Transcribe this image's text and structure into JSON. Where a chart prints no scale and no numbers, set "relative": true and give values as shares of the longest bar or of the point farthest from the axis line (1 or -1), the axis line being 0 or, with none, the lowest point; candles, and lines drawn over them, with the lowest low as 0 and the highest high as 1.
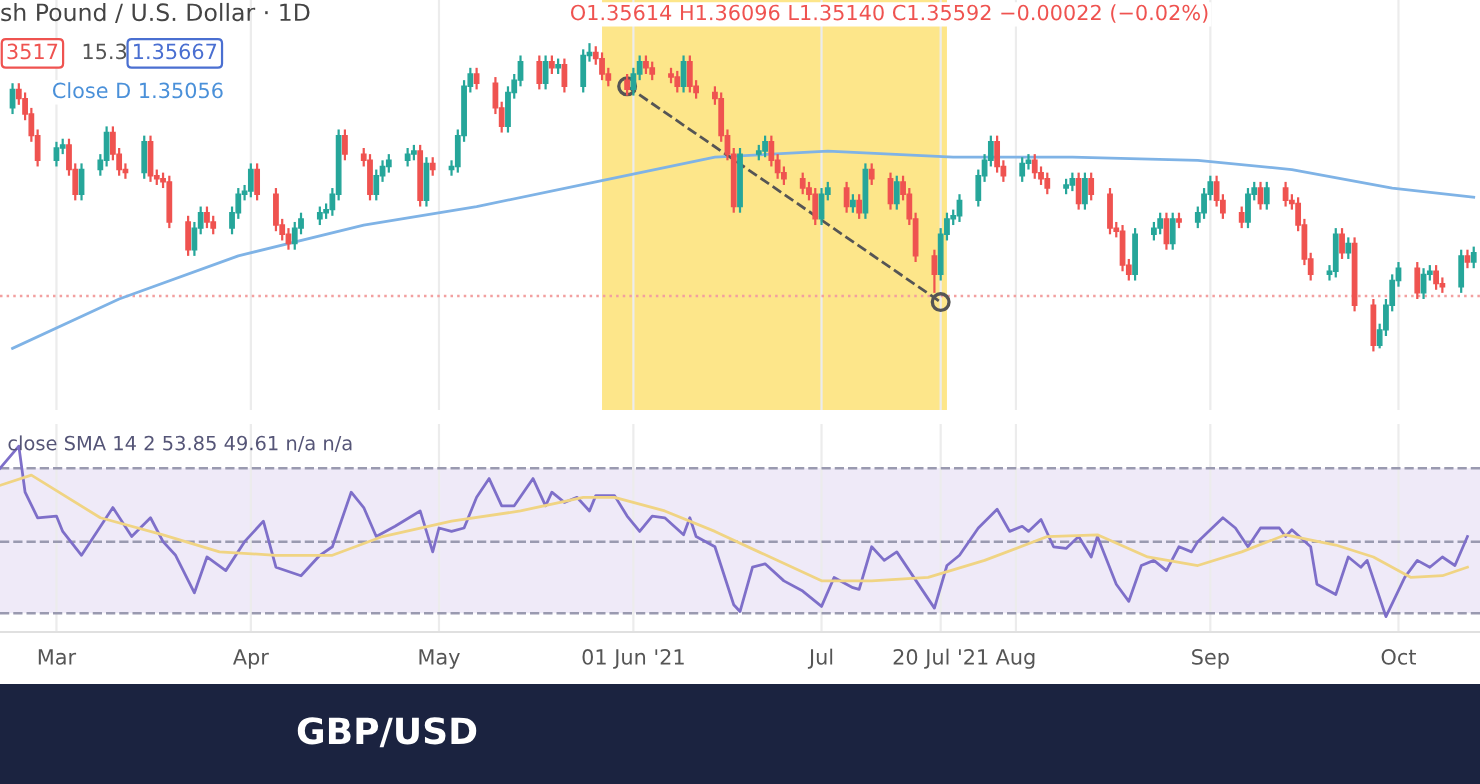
{
  "chart_data": [
    {
      "type": "candlestick",
      "title": "sh Pound / U.S. Dollar · 1D",
      "relative": true,
      "tick_labels": false,
      "grid": "x",
      "annotations": [
        "O1.35614 H1.36096 L1.35140 C1.35592 −0.00022 (−0.02%)",
        "3517",
        "15.3",
        "1.35667",
        "Close D 1.35056"
      ],
      "colors": [
        "#26a69a",
        "#ef5350",
        "#ef5350",
        "#ef5350",
        "#ef5350",
        "#26a69a",
        "#26a69a",
        "#ef5350",
        "#ef5350",
        "#26a69a",
        "#26a69a",
        "#26a69a",
        "#ef5350",
        "#ef5350",
        "#ef5350",
        "#26a69a",
        "#ef5350",
        "#ef5350",
        "#ef5350",
        "#ef5350",
        "#ef5350",
        "#26a69a",
        "#26a69a",
        "#ef5350",
        "#ef5350",
        "#26a69a",
        "#26a69a",
        "#26a69a",
        "#26a69a",
        "#ef5350",
        "#ef5350",
        "#ef5350",
        "#ef5350",
        "#26a69a",
        "#26a69a",
        "#26a69a",
        "#26a69a",
        "#26a69a",
        "#26a69a",
        "#ef5350",
        "#ef5350",
        "#ef5350",
        "#26a69a",
        "#26a69a",
        "#26a69a",
        "#26a69a",
        "#26a69a",
        "#ef5350",
        "#26a69a",
        "#ef5350",
        "#26a69a",
        "#26a69a",
        "#26a69a",
        "#26a69a",
        "#ef5350",
        "#ef5350",
        "#ef5350",
        "#26a69a",
        "#26a69a",
        "#26a69a",
        "#ef5350",
        "#26a69a",
        "#ef5350",
        "#26a69a",
        "#ef5350",
        "#26a69a",
        "#26a69a",
        "#ef5350",
        "#ef5350",
        "#ef5350",
        "#ef5350",
        "#26a69a",
        "#26a69a",
        "#ef5350",
        "#ef5350",
        "#ef5350",
        "#ef5350",
        "#26a69a",
        "#ef5350",
        "#ef5350",
        "#ef5350",
        "#ef5350",
        "#ef5350",
        "#ef5350",
        "#26a69a",
        "#26a69a",
        "#26a69a",
        "#ef5350",
        "#ef5350",
        "#ef5350",
        "#ef5350",
        "#ef5350",
        "#ef5350",
        "#26a69a",
        "#26a69a",
        "#ef5350",
        "#26a69a",
        "#ef5350",
        "#26a69a",
        "#ef5350",
        "#ef5350",
        "#26a69a",
        "#ef5350",
        "#ef5350",
        "#ef5350",
        "#ef5350",
        "#26a69a",
        "#26a69a",
        "#26a69a",
        "#26a69a",
        "#26a69a",
        "#26a69a",
        "#26a69a",
        "#ef5350",
        "#ef5350",
        "#26a69a",
        "#26a69a",
        "#ef5350",
        "#ef5350",
        "#ef5350",
        "#26a69a",
        "#26a69a",
        "#ef5350",
        "#26a69a",
        "#ef5350",
        "#ef5350",
        "#ef5350",
        "#ef5350",
        "#ef5350",
        "#26a69a",
        "#26a69a",
        "#26a69a",
        "#ef5350",
        "#26a69a",
        "#ef5350",
        "#26a69a",
        "#26a69a",
        "#26a69a",
        "#ef5350",
        "#ef5350",
        "#ef5350",
        "#26a69a",
        "#26a69a",
        "#ef5350",
        "#26a69a",
        "#ef5350",
        "#ef5350",
        "#ef5350",
        "#ef5350",
        "#ef5350",
        "#26a69a",
        "#26a69a",
        "#ef5350",
        "#26a69a",
        "#ef5350",
        "#ef5350",
        "#26a69a",
        "#26a69a",
        "#26a69a",
        "#26a69a",
        "#ef5350",
        "#26a69a",
        "#26a69a",
        "#ef5350",
        "#ef5350",
        "#26a69a",
        "#ef5350",
        "#26a69a"
      ],
      "xlim": [
        "2021-02-20",
        "2021-10-14"
      ],
      "x": [
        "2021-02-22",
        "2021-02-23",
        "2021-02-24",
        "2021-02-25",
        "2021-02-26",
        "2021-03-01",
        "2021-03-02",
        "2021-03-03",
        "2021-03-04",
        "2021-03-05",
        "2021-03-08",
        "2021-03-09",
        "2021-03-10",
        "2021-03-11",
        "2021-03-12",
        "2021-03-15",
        "2021-03-16",
        "2021-03-17",
        "2021-03-18",
        "2021-03-19",
        "2021-03-22",
        "2021-03-23",
        "2021-03-24",
        "2021-03-25",
        "2021-03-26",
        "2021-03-29",
        "2021-03-30",
        "2021-03-31",
        "2021-04-01",
        "2021-04-02",
        "2021-04-05",
        "2021-04-06",
        "2021-04-07",
        "2021-04-08",
        "2021-04-09",
        "2021-04-12",
        "2021-04-13",
        "2021-04-14",
        "2021-04-15",
        "2021-04-16",
        "2021-04-19",
        "2021-04-20",
        "2021-04-21",
        "2021-04-22",
        "2021-04-23",
        "2021-04-26",
        "2021-04-27",
        "2021-04-28",
        "2021-04-29",
        "2021-04-30",
        "2021-05-03",
        "2021-05-04",
        "2021-05-05",
        "2021-05-06",
        "2021-05-07",
        "2021-05-10",
        "2021-05-11",
        "2021-05-12",
        "2021-05-13",
        "2021-05-14",
        "2021-05-17",
        "2021-05-18",
        "2021-05-19",
        "2021-05-20",
        "2021-05-21",
        "2021-05-24",
        "2021-05-25",
        "2021-05-26",
        "2021-05-27",
        "2021-05-28",
        "2021-05-31",
        "2021-06-01",
        "2021-06-02",
        "2021-06-03",
        "2021-06-04",
        "2021-06-07",
        "2021-06-08",
        "2021-06-09",
        "2021-06-10",
        "2021-06-11",
        "2021-06-14",
        "2021-06-15",
        "2021-06-16",
        "2021-06-17",
        "2021-06-18",
        "2021-06-21",
        "2021-06-22",
        "2021-06-23",
        "2021-06-24",
        "2021-06-25",
        "2021-06-28",
        "2021-06-29",
        "2021-06-30",
        "2021-07-01",
        "2021-07-02",
        "2021-07-05",
        "2021-07-06",
        "2021-07-07",
        "2021-07-08",
        "2021-07-09",
        "2021-07-12",
        "2021-07-13",
        "2021-07-14",
        "2021-07-15",
        "2021-07-16",
        "2021-07-19",
        "2021-07-20",
        "2021-07-21",
        "2021-07-22",
        "2021-07-23",
        "2021-07-26",
        "2021-07-27",
        "2021-07-28",
        "2021-07-29",
        "2021-07-30",
        "2021-08-02",
        "2021-08-03",
        "2021-08-04",
        "2021-08-05",
        "2021-08-06",
        "2021-08-09",
        "2021-08-10",
        "2021-08-11",
        "2021-08-12",
        "2021-08-13",
        "2021-08-16",
        "2021-08-17",
        "2021-08-18",
        "2021-08-19",
        "2021-08-20",
        "2021-08-23",
        "2021-08-24",
        "2021-08-25",
        "2021-08-26",
        "2021-08-27",
        "2021-08-30",
        "2021-08-31",
        "2021-09-01",
        "2021-09-02",
        "2021-09-03",
        "2021-09-06",
        "2021-09-07",
        "2021-09-08",
        "2021-09-09",
        "2021-09-10",
        "2021-09-13",
        "2021-09-14",
        "2021-09-15",
        "2021-09-16",
        "2021-09-17",
        "2021-09-20",
        "2021-09-21",
        "2021-09-22",
        "2021-09-23",
        "2021-09-24",
        "2021-09-27",
        "2021-09-28",
        "2021-09-29",
        "2021-09-30",
        "2021-10-01",
        "2021-10-04",
        "2021-10-05",
        "2021-10-06",
        "2021-10-07",
        "2021-10-08",
        "2021-10-11",
        "2021-10-12",
        "2021-10-13"
      ],
      "ohlc": [
        [
          0.79,
          0.87,
          0.77,
          0.85
        ],
        [
          0.85,
          0.87,
          0.8,
          0.82
        ],
        [
          0.82,
          0.84,
          0.75,
          0.77
        ],
        [
          0.77,
          0.79,
          0.68,
          0.7
        ],
        [
          0.7,
          0.72,
          0.6,
          0.62
        ],
        [
          0.62,
          0.68,
          0.6,
          0.66
        ],
        [
          0.66,
          0.69,
          0.64,
          0.67
        ],
        [
          0.67,
          0.69,
          0.57,
          0.59
        ],
        [
          0.59,
          0.61,
          0.49,
          0.51
        ],
        [
          0.51,
          0.61,
          0.49,
          0.59
        ],
        [
          0.59,
          0.64,
          0.57,
          0.62
        ],
        [
          0.62,
          0.73,
          0.6,
          0.71
        ],
        [
          0.71,
          0.73,
          0.62,
          0.64
        ],
        [
          0.64,
          0.66,
          0.57,
          0.59
        ],
        [
          0.59,
          0.61,
          0.56,
          0.58
        ],
        [
          0.58,
          0.7,
          0.56,
          0.68
        ],
        [
          0.68,
          0.7,
          0.55,
          0.57
        ],
        [
          0.57,
          0.59,
          0.54,
          0.56
        ],
        [
          0.56,
          0.58,
          0.53,
          0.55
        ],
        [
          0.55,
          0.57,
          0.4,
          0.42
        ],
        [
          0.42,
          0.44,
          0.31,
          0.33
        ],
        [
          0.33,
          0.42,
          0.31,
          0.4
        ],
        [
          0.4,
          0.47,
          0.38,
          0.45
        ],
        [
          0.45,
          0.47,
          0.4,
          0.42
        ],
        [
          0.42,
          0.44,
          0.38,
          0.4
        ],
        [
          0.4,
          0.47,
          0.38,
          0.45
        ],
        [
          0.45,
          0.53,
          0.43,
          0.51
        ],
        [
          0.51,
          0.54,
          0.49,
          0.52
        ],
        [
          0.52,
          0.61,
          0.5,
          0.59
        ],
        [
          0.59,
          0.61,
          0.49,
          0.51
        ],
        [
          0.51,
          0.53,
          0.39,
          0.41
        ],
        [
          0.41,
          0.43,
          0.36,
          0.38
        ],
        [
          0.38,
          0.4,
          0.33,
          0.35
        ],
        [
          0.35,
          0.42,
          0.33,
          0.4
        ],
        [
          0.4,
          0.45,
          0.38,
          0.43
        ],
        [
          0.43,
          0.47,
          0.41,
          0.45
        ],
        [
          0.45,
          0.48,
          0.43,
          0.46
        ],
        [
          0.46,
          0.53,
          0.44,
          0.51
        ],
        [
          0.51,
          0.72,
          0.49,
          0.7
        ],
        [
          0.7,
          0.72,
          0.62,
          0.64
        ],
        [
          0.64,
          0.66,
          0.6,
          0.62
        ],
        [
          0.62,
          0.64,
          0.49,
          0.51
        ],
        [
          0.51,
          0.59,
          0.49,
          0.57
        ],
        [
          0.57,
          0.62,
          0.55,
          0.6
        ],
        [
          0.6,
          0.64,
          0.58,
          0.62
        ],
        [
          0.62,
          0.66,
          0.6,
          0.64
        ],
        [
          0.64,
          0.67,
          0.62,
          0.65
        ],
        [
          0.65,
          0.67,
          0.47,
          0.49
        ],
        [
          0.49,
          0.63,
          0.47,
          0.61
        ],
        [
          0.61,
          0.63,
          0.57,
          0.59
        ],
        [
          0.59,
          0.62,
          0.57,
          0.6
        ],
        [
          0.6,
          0.72,
          0.58,
          0.7
        ],
        [
          0.7,
          0.88,
          0.68,
          0.86
        ],
        [
          0.86,
          0.92,
          0.84,
          0.9
        ],
        [
          0.9,
          0.92,
          0.85,
          0.87
        ],
        [
          0.87,
          0.89,
          0.77,
          0.79
        ],
        [
          0.79,
          0.81,
          0.71,
          0.73
        ],
        [
          0.73,
          0.86,
          0.71,
          0.84
        ],
        [
          0.84,
          0.9,
          0.82,
          0.88
        ],
        [
          0.88,
          0.96,
          0.86,
          0.94
        ],
        [
          0.94,
          0.96,
          0.85,
          0.87
        ],
        [
          0.87,
          0.96,
          0.85,
          0.94
        ],
        [
          0.94,
          0.96,
          0.9,
          0.92
        ],
        [
          0.92,
          0.95,
          0.9,
          0.93
        ],
        [
          0.93,
          0.95,
          0.84,
          0.86
        ],
        [
          0.86,
          0.98,
          0.84,
          0.96
        ],
        [
          0.96,
          1.0,
          0.94,
          0.97
        ],
        [
          0.97,
          0.99,
          0.93,
          0.95
        ],
        [
          0.95,
          0.97,
          0.88,
          0.9
        ],
        [
          0.9,
          0.92,
          0.86,
          0.88
        ],
        [
          0.88,
          0.9,
          0.83,
          0.85
        ],
        [
          0.85,
          0.92,
          0.83,
          0.9
        ],
        [
          0.9,
          0.96,
          0.88,
          0.94
        ],
        [
          0.94,
          0.96,
          0.9,
          0.92
        ],
        [
          0.92,
          0.94,
          0.88,
          0.9
        ],
        [
          0.9,
          0.92,
          0.87,
          0.89
        ],
        [
          0.89,
          0.91,
          0.84,
          0.86
        ],
        [
          0.86,
          0.96,
          0.84,
          0.94
        ],
        [
          0.94,
          0.96,
          0.84,
          0.86
        ],
        [
          0.86,
          0.88,
          0.82,
          0.84
        ],
        [
          0.84,
          0.86,
          0.8,
          0.82
        ],
        [
          0.82,
          0.84,
          0.68,
          0.7
        ],
        [
          0.7,
          0.72,
          0.62,
          0.64
        ],
        [
          0.64,
          0.66,
          0.45,
          0.47
        ],
        [
          0.47,
          0.66,
          0.45,
          0.64
        ],
        [
          0.64,
          0.67,
          0.62,
          0.65
        ],
        [
          0.65,
          0.7,
          0.63,
          0.68
        ],
        [
          0.68,
          0.7,
          0.6,
          0.62
        ],
        [
          0.62,
          0.64,
          0.56,
          0.58
        ],
        [
          0.58,
          0.6,
          0.54,
          0.56
        ],
        [
          0.56,
          0.58,
          0.51,
          0.53
        ],
        [
          0.53,
          0.55,
          0.49,
          0.51
        ],
        [
          0.51,
          0.53,
          0.41,
          0.43
        ],
        [
          0.43,
          0.53,
          0.41,
          0.51
        ],
        [
          0.51,
          0.55,
          0.49,
          0.53
        ],
        [
          0.53,
          0.55,
          0.45,
          0.47
        ],
        [
          0.47,
          0.51,
          0.45,
          0.49
        ],
        [
          0.49,
          0.51,
          0.43,
          0.45
        ],
        [
          0.45,
          0.61,
          0.43,
          0.59
        ],
        [
          0.59,
          0.61,
          0.54,
          0.56
        ],
        [
          0.56,
          0.58,
          0.46,
          0.48
        ],
        [
          0.48,
          0.57,
          0.46,
          0.55
        ],
        [
          0.55,
          0.57,
          0.49,
          0.51
        ],
        [
          0.51,
          0.53,
          0.41,
          0.43
        ],
        [
          0.43,
          0.45,
          0.29,
          0.31
        ],
        [
          0.31,
          0.33,
          0.19,
          0.25
        ],
        [
          0.25,
          0.4,
          0.23,
          0.38
        ],
        [
          0.38,
          0.45,
          0.36,
          0.43
        ],
        [
          0.43,
          0.46,
          0.41,
          0.44
        ],
        [
          0.44,
          0.51,
          0.42,
          0.49
        ],
        [
          0.49,
          0.59,
          0.47,
          0.57
        ],
        [
          0.57,
          0.64,
          0.55,
          0.62
        ],
        [
          0.62,
          0.7,
          0.6,
          0.68
        ],
        [
          0.68,
          0.7,
          0.58,
          0.6
        ],
        [
          0.6,
          0.62,
          0.55,
          0.57
        ],
        [
          0.57,
          0.63,
          0.55,
          0.61
        ],
        [
          0.61,
          0.64,
          0.59,
          0.62
        ],
        [
          0.62,
          0.64,
          0.56,
          0.58
        ],
        [
          0.58,
          0.6,
          0.54,
          0.56
        ],
        [
          0.56,
          0.58,
          0.51,
          0.53
        ],
        [
          0.53,
          0.56,
          0.51,
          0.54
        ],
        [
          0.54,
          0.58,
          0.52,
          0.56
        ],
        [
          0.56,
          0.58,
          0.46,
          0.48
        ],
        [
          0.48,
          0.58,
          0.46,
          0.56
        ],
        [
          0.56,
          0.58,
          0.49,
          0.51
        ],
        [
          0.51,
          0.53,
          0.38,
          0.4
        ],
        [
          0.4,
          0.42,
          0.37,
          0.39
        ],
        [
          0.39,
          0.41,
          0.26,
          0.28
        ],
        [
          0.28,
          0.3,
          0.23,
          0.25
        ],
        [
          0.25,
          0.4,
          0.23,
          0.38
        ],
        [
          0.38,
          0.42,
          0.36,
          0.4
        ],
        [
          0.4,
          0.45,
          0.38,
          0.43
        ],
        [
          0.43,
          0.45,
          0.33,
          0.35
        ],
        [
          0.35,
          0.45,
          0.33,
          0.43
        ],
        [
          0.43,
          0.45,
          0.4,
          0.42
        ],
        [
          0.42,
          0.47,
          0.4,
          0.45
        ],
        [
          0.45,
          0.53,
          0.43,
          0.51
        ],
        [
          0.51,
          0.57,
          0.49,
          0.55
        ],
        [
          0.55,
          0.57,
          0.47,
          0.49
        ],
        [
          0.49,
          0.51,
          0.43,
          0.45
        ],
        [
          0.45,
          0.47,
          0.4,
          0.42
        ],
        [
          0.42,
          0.53,
          0.4,
          0.51
        ],
        [
          0.51,
          0.55,
          0.49,
          0.53
        ],
        [
          0.53,
          0.55,
          0.46,
          0.48
        ],
        [
          0.48,
          0.55,
          0.46,
          0.53
        ],
        [
          0.53,
          0.55,
          0.47,
          0.49
        ],
        [
          0.49,
          0.51,
          0.46,
          0.48
        ],
        [
          0.48,
          0.5,
          0.39,
          0.41
        ],
        [
          0.41,
          0.43,
          0.28,
          0.3
        ],
        [
          0.3,
          0.32,
          0.23,
          0.25
        ],
        [
          0.25,
          0.28,
          0.23,
          0.26
        ],
        [
          0.26,
          0.4,
          0.24,
          0.38
        ],
        [
          0.38,
          0.4,
          0.3,
          0.32
        ],
        [
          0.32,
          0.37,
          0.3,
          0.35
        ],
        [
          0.35,
          0.37,
          0.13,
          0.15
        ],
        [
          0.15,
          0.17,
          0.0,
          0.02
        ],
        [
          0.02,
          0.09,
          0.01,
          0.07
        ],
        [
          0.07,
          0.17,
          0.05,
          0.15
        ],
        [
          0.15,
          0.25,
          0.13,
          0.23
        ],
        [
          0.23,
          0.29,
          0.21,
          0.27
        ],
        [
          0.27,
          0.29,
          0.17,
          0.19
        ],
        [
          0.19,
          0.27,
          0.17,
          0.25
        ],
        [
          0.25,
          0.28,
          0.23,
          0.26
        ],
        [
          0.26,
          0.28,
          0.2,
          0.22
        ],
        [
          0.22,
          0.24,
          0.19,
          0.21
        ],
        [
          0.21,
          0.33,
          0.19,
          0.31
        ],
        [
          0.31,
          0.33,
          0.27,
          0.29
        ],
        [
          0.29,
          0.34,
          0.27,
          0.32
        ]
      ],
      "series": [
        {
          "type": "line",
          "color": "#7fb3e6",
          "line_style": "solid",
          "marker": "none",
          "x": [
            "2021-02-22",
            "2021-03-11",
            "2021-03-30",
            "2021-04-19",
            "2021-05-07",
            "2021-05-26",
            "2021-06-14",
            "2021-07-02",
            "2021-07-22",
            "2021-08-10",
            "2021-08-30",
            "2021-09-14",
            "2021-09-30",
            "2021-10-13"
          ],
          "values": [
            0.01,
            0.17,
            0.31,
            0.41,
            0.47,
            0.55,
            0.63,
            0.65,
            0.63,
            0.63,
            0.62,
            0.59,
            0.53,
            0.5
          ]
        },
        {
          "type": "line",
          "color": "#555555",
          "line_style": "dashed",
          "marker": "circle",
          "x": [
            "2021-05-31",
            "2021-07-20"
          ],
          "values": [
            0.86,
            0.16
          ]
        }
      ],
      "bands": [
        {
          "axis": "x",
          "from": "2021-05-27",
          "to": "2021-07-21",
          "color": "#fde68a"
        }
      ],
      "ref_lines": [
        {
          "axis": "y",
          "value": 0.18,
          "color": "#f2a0a0",
          "line_style": "dotted"
        }
      ]
    },
    {
      "type": "line",
      "title": "close SMA 14 2 53.85 49.61 n/a n/a",
      "relative": true,
      "tick_labels": "x",
      "grid": "x",
      "annotations": [
        "GBP/USD"
      ],
      "xlim": [
        "2021-02-20",
        "2021-10-14"
      ],
      "xticks": [
        {
          "value": "2021-03-01",
          "label": "Mar"
        },
        {
          "value": "2021-04-01",
          "label": "Apr"
        },
        {
          "value": "2021-05-01",
          "label": "May"
        },
        {
          "value": "2021-06-01",
          "label": "01 Jun '21"
        },
        {
          "value": "2021-07-01",
          "label": "Jul"
        },
        {
          "value": "2021-07-20",
          "label": "20 Jul '21"
        },
        {
          "value": "2021-08-01",
          "label": "Aug"
        },
        {
          "value": "2021-09-01",
          "label": "Sep"
        },
        {
          "value": "2021-10-01",
          "label": "Oct"
        }
      ],
      "series": [
        {
          "type": "line",
          "color": "#7e6fc9",
          "x": [
            "2021-02-20",
            "2021-02-23",
            "2021-02-24",
            "2021-02-26",
            "2021-03-01",
            "2021-03-02",
            "2021-03-05",
            "2021-03-10",
            "2021-03-13",
            "2021-03-16",
            "2021-03-18",
            "2021-03-20",
            "2021-03-23",
            "2021-03-25",
            "2021-03-28",
            "2021-03-31",
            "2021-04-03",
            "2021-04-05",
            "2021-04-09",
            "2021-04-12",
            "2021-04-14",
            "2021-04-17",
            "2021-04-19",
            "2021-04-21",
            "2021-04-24",
            "2021-04-28",
            "2021-04-30",
            "2021-05-01",
            "2021-05-03",
            "2021-05-05",
            "2021-05-07",
            "2021-05-09",
            "2021-05-11",
            "2021-05-13",
            "2021-05-16",
            "2021-05-18",
            "2021-05-19",
            "2021-05-21",
            "2021-05-23",
            "2021-05-25",
            "2021-05-26",
            "2021-05-29",
            "2021-05-31",
            "2021-06-02",
            "2021-06-04",
            "2021-06-06",
            "2021-06-09",
            "2021-06-10",
            "2021-06-11",
            "2021-06-14",
            "2021-06-17",
            "2021-06-18",
            "2021-06-20",
            "2021-06-22",
            "2021-06-25",
            "2021-06-28",
            "2021-07-01",
            "2021-07-03",
            "2021-07-06",
            "2021-07-07",
            "2021-07-09",
            "2021-07-11",
            "2021-07-13",
            "2021-07-15",
            "2021-07-19",
            "2021-07-21",
            "2021-07-23",
            "2021-07-26",
            "2021-07-29",
            "2021-07-31",
            "2021-08-02",
            "2021-08-03",
            "2021-08-05",
            "2021-08-07",
            "2021-08-09",
            "2021-08-11",
            "2021-08-13",
            "2021-08-14",
            "2021-08-17",
            "2021-08-19",
            "2021-08-21",
            "2021-08-23",
            "2021-08-25",
            "2021-08-27",
            "2021-08-29",
            "2021-08-30",
            "2021-09-03",
            "2021-09-05",
            "2021-09-07",
            "2021-09-09",
            "2021-09-12",
            "2021-09-13",
            "2021-09-14",
            "2021-09-17",
            "2021-09-18",
            "2021-09-21",
            "2021-09-23",
            "2021-09-25",
            "2021-09-26",
            "2021-09-29",
            "2021-10-02",
            "2021-10-04",
            "2021-10-06",
            "2021-10-08",
            "2021-10-10",
            "2021-10-12"
          ],
          "values": [
            0.87,
            1.0,
            0.73,
            0.58,
            0.59,
            0.5,
            0.36,
            0.64,
            0.47,
            0.58,
            0.44,
            0.36,
            0.14,
            0.35,
            0.27,
            0.44,
            0.56,
            0.29,
            0.24,
            0.36,
            0.41,
            0.73,
            0.64,
            0.47,
            0.53,
            0.62,
            0.38,
            0.52,
            0.5,
            0.52,
            0.7,
            0.81,
            0.65,
            0.65,
            0.81,
            0.65,
            0.73,
            0.67,
            0.7,
            0.62,
            0.71,
            0.71,
            0.59,
            0.5,
            0.59,
            0.58,
            0.48,
            0.58,
            0.47,
            0.41,
            0.07,
            0.03,
            0.29,
            0.31,
            0.21,
            0.15,
            0.06,
            0.23,
            0.17,
            0.16,
            0.41,
            0.33,
            0.38,
            0.27,
            0.05,
            0.3,
            0.36,
            0.52,
            0.63,
            0.5,
            0.53,
            0.5,
            0.57,
            0.41,
            0.4,
            0.47,
            0.35,
            0.47,
            0.19,
            0.09,
            0.3,
            0.33,
            0.27,
            0.41,
            0.38,
            0.44,
            0.58,
            0.52,
            0.41,
            0.52,
            0.52,
            0.47,
            0.51,
            0.41,
            0.19,
            0.13,
            0.35,
            0.29,
            0.33,
            0.0,
            0.23,
            0.33,
            0.29,
            0.35,
            0.3,
            0.47
          ]
        },
        {
          "type": "line",
          "color": "#f0d483",
          "x": [
            "2021-02-20",
            "2021-02-25",
            "2021-03-08",
            "2021-03-18",
            "2021-03-27",
            "2021-04-05",
            "2021-04-14",
            "2021-04-22",
            "2021-05-03",
            "2021-05-14",
            "2021-05-24",
            "2021-05-29",
            "2021-06-06",
            "2021-06-14",
            "2021-06-21",
            "2021-07-01",
            "2021-07-09",
            "2021-07-18",
            "2021-07-27",
            "2021-08-06",
            "2021-08-14",
            "2021-08-22",
            "2021-08-30",
            "2021-09-06",
            "2021-09-13",
            "2021-09-21",
            "2021-09-27",
            "2021-10-03",
            "2021-10-08",
            "2021-10-12"
          ],
          "values": [
            0.77,
            0.83,
            0.58,
            0.48,
            0.38,
            0.36,
            0.36,
            0.47,
            0.56,
            0.62,
            0.7,
            0.7,
            0.62,
            0.5,
            0.38,
            0.21,
            0.21,
            0.23,
            0.33,
            0.47,
            0.48,
            0.35,
            0.3,
            0.38,
            0.48,
            0.42,
            0.35,
            0.23,
            0.24,
            0.29
          ]
        }
      ],
      "bands": [
        {
          "axis": "y",
          "from": 0.02,
          "to": 0.87,
          "color": "#efeaf8"
        }
      ],
      "ref_lines": [
        {
          "axis": "y",
          "value": 0.87,
          "color": "#9a9ab0",
          "line_style": "dashed"
        },
        {
          "axis": "y",
          "value": 0.44,
          "color": "#9a9ab0",
          "line_style": "dashed"
        },
        {
          "axis": "y",
          "value": 0.02,
          "color": "#9a9ab0",
          "line_style": "dashed"
        }
      ]
    }
  ]
}
